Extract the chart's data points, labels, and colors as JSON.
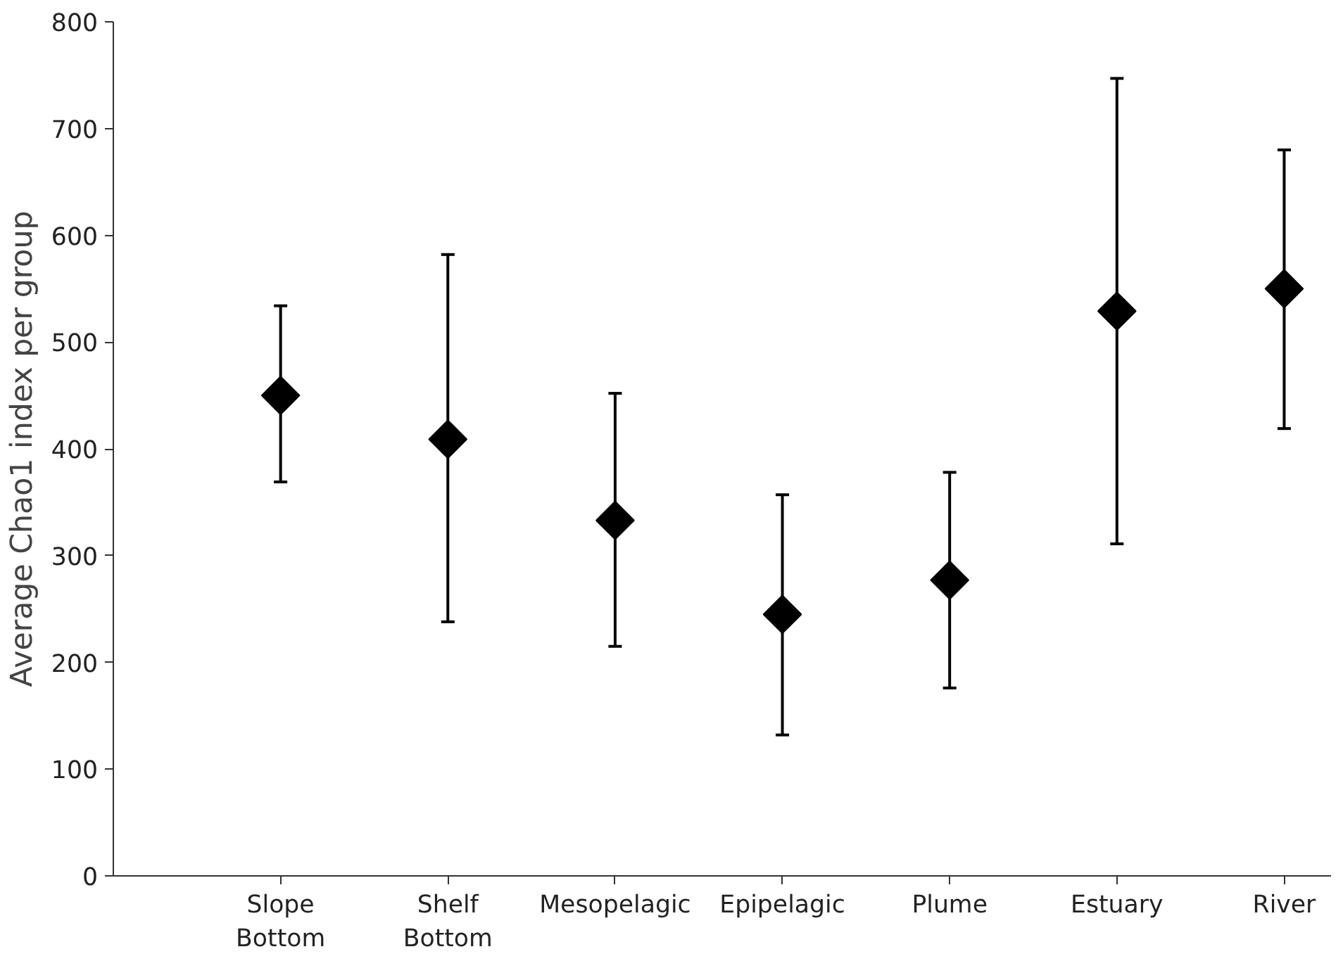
{
  "chart_data": {
    "type": "scatter",
    "ylabel": "Average Chao1 index per group",
    "categories": [
      "Slope\nBottom",
      "Shelf\nBottom",
      "Mesopelagic",
      "Epipelagic",
      "Plume",
      "Estuary",
      "River"
    ],
    "values": [
      450,
      409,
      333,
      245,
      277,
      529,
      550
    ],
    "errors": [
      [
        369,
        534
      ],
      [
        238,
        582
      ],
      [
        215,
        452
      ],
      [
        132,
        357
      ],
      [
        176,
        378
      ],
      [
        311,
        747
      ],
      [
        419,
        680
      ]
    ],
    "color": "#000000",
    "marker": "diamond",
    "ylim": [
      0,
      800
    ],
    "yticks": [
      0,
      100,
      200,
      300,
      400,
      500,
      600,
      700,
      800
    ],
    "grid": false
  }
}
